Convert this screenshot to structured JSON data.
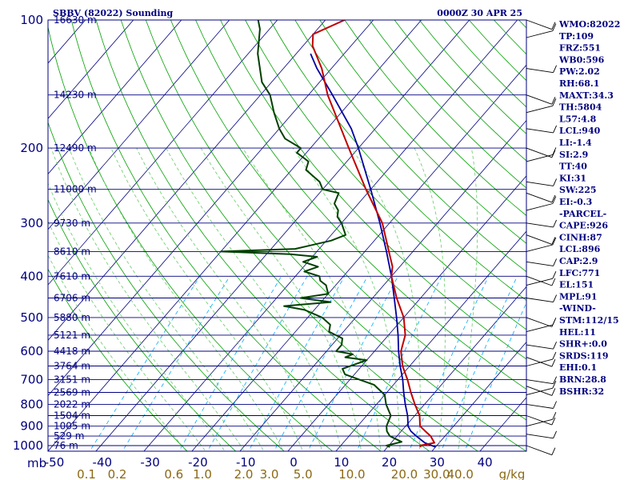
{
  "chart_data": {
    "type": "skew-t",
    "title": "SBBV (82022) Sounding",
    "datetime": "0000Z 30 APR 25",
    "pressure_axis_label": "mb",
    "pressure_ticks": [
      100,
      200,
      300,
      400,
      500,
      600,
      700,
      800,
      900,
      1000
    ],
    "temperature_ticks": [
      "-50",
      "-40",
      "-30",
      "-20",
      "-10",
      "0",
      "10",
      "20",
      "30",
      "40"
    ],
    "mixing_ratio_labels": [
      "0.1",
      "0.2",
      "0.6",
      "1.0",
      "2.0",
      "3.0",
      "5.0",
      "10.0",
      "20.0",
      "30.0",
      "40.0"
    ],
    "mixing_ratio_unit": "g/kg",
    "height_labels": [
      {
        "p": 100,
        "text": "16630 m"
      },
      {
        "p": 150,
        "text": "14230 m"
      },
      {
        "p": 200,
        "text": "12490 m"
      },
      {
        "p": 250,
        "text": "11000 m"
      },
      {
        "p": 300,
        "text": "9730 m"
      },
      {
        "p": 350,
        "text": "8610 m"
      },
      {
        "p": 400,
        "text": "7610 m"
      },
      {
        "p": 450,
        "text": "6706 m"
      },
      {
        "p": 500,
        "text": "5880 m"
      },
      {
        "p": 550,
        "text": "5121 m"
      },
      {
        "p": 600,
        "text": "4418 m"
      },
      {
        "p": 650,
        "text": "3764 m"
      },
      {
        "p": 700,
        "text": "3151 m"
      },
      {
        "p": 750,
        "text": "2569 m"
      },
      {
        "p": 800,
        "text": "2022 m"
      },
      {
        "p": 850,
        "text": "1504 m"
      },
      {
        "p": 900,
        "text": "1005 m"
      },
      {
        "p": 950,
        "text": "529 m"
      },
      {
        "p": 1000,
        "text": "76 m"
      }
    ],
    "temperature_profile": [
      [
        1008,
        27
      ],
      [
        1000,
        26.5
      ],
      [
        985,
        29
      ],
      [
        950,
        27
      ],
      [
        925,
        25
      ],
      [
        900,
        23
      ],
      [
        850,
        21
      ],
      [
        800,
        18
      ],
      [
        750,
        15
      ],
      [
        700,
        12
      ],
      [
        650,
        8.5
      ],
      [
        600,
        5.5
      ],
      [
        550,
        3.5
      ],
      [
        500,
        0
      ],
      [
        450,
        -5
      ],
      [
        400,
        -10
      ],
      [
        380,
        -11.5
      ],
      [
        350,
        -15
      ],
      [
        300,
        -21.5
      ],
      [
        250,
        -31
      ],
      [
        200,
        -42
      ],
      [
        150,
        -56
      ],
      [
        130,
        -62
      ],
      [
        115,
        -68
      ],
      [
        108,
        -70
      ],
      [
        100,
        -66
      ]
    ],
    "dewpoint_profile": [
      [
        1008,
        20.5
      ],
      [
        1000,
        19.5
      ],
      [
        980,
        22
      ],
      [
        950,
        18.5
      ],
      [
        925,
        17
      ],
      [
        900,
        16
      ],
      [
        850,
        15
      ],
      [
        800,
        12
      ],
      [
        760,
        10
      ],
      [
        720,
        6
      ],
      [
        700,
        2
      ],
      [
        680,
        -2
      ],
      [
        660,
        -3.5
      ],
      [
        630,
        0
      ],
      [
        620,
        -5
      ],
      [
        610,
        -4
      ],
      [
        600,
        -8
      ],
      [
        580,
        -8
      ],
      [
        560,
        -9
      ],
      [
        540,
        -13
      ],
      [
        520,
        -14
      ],
      [
        500,
        -17
      ],
      [
        480,
        -22
      ],
      [
        470,
        -27
      ],
      [
        460,
        -18
      ],
      [
        450,
        -25
      ],
      [
        440,
        -20
      ],
      [
        430,
        -21
      ],
      [
        420,
        -22
      ],
      [
        410,
        -24
      ],
      [
        400,
        -25
      ],
      [
        390,
        -29
      ],
      [
        380,
        -27
      ],
      [
        370,
        -31
      ],
      [
        360,
        -29
      ],
      [
        355,
        -35
      ],
      [
        350,
        -50
      ],
      [
        345,
        -35
      ],
      [
        340,
        -33
      ],
      [
        330,
        -29
      ],
      [
        320,
        -27
      ],
      [
        300,
        -30
      ],
      [
        290,
        -32
      ],
      [
        280,
        -33
      ],
      [
        270,
        -35
      ],
      [
        255,
        -36
      ],
      [
        250,
        -40
      ],
      [
        240,
        -42
      ],
      [
        225,
        -47
      ],
      [
        215,
        -48
      ],
      [
        205,
        -52
      ],
      [
        200,
        -52
      ],
      [
        190,
        -57
      ],
      [
        180,
        -60
      ],
      [
        165,
        -64
      ],
      [
        150,
        -68
      ],
      [
        140,
        -72
      ],
      [
        120,
        -78
      ],
      [
        105,
        -82
      ],
      [
        100,
        -84
      ]
    ],
    "parcel_profile": [
      [
        1008,
        30
      ],
      [
        985,
        27
      ],
      [
        950,
        24
      ],
      [
        925,
        22
      ],
      [
        900,
        20.5
      ],
      [
        850,
        18.5
      ],
      [
        800,
        16
      ],
      [
        750,
        13.5
      ],
      [
        700,
        11
      ],
      [
        650,
        8
      ],
      [
        600,
        5
      ],
      [
        550,
        2
      ],
      [
        500,
        -1.5
      ],
      [
        450,
        -5.5
      ],
      [
        400,
        -10
      ],
      [
        350,
        -15.5
      ],
      [
        300,
        -22
      ],
      [
        250,
        -30
      ],
      [
        200,
        -40
      ],
      [
        180,
        -45
      ],
      [
        150,
        -55
      ],
      [
        130,
        -63
      ],
      [
        120,
        -67
      ]
    ],
    "wind_barbs": [
      [
        100,
        "",
        0
      ],
      [
        110,
        "",
        0
      ],
      [
        130,
        "",
        0
      ],
      [
        150,
        "",
        0
      ],
      [
        165,
        "",
        0
      ],
      [
        180,
        "",
        0
      ],
      [
        200,
        "",
        0
      ],
      [
        215,
        "",
        0
      ],
      [
        240,
        "",
        0
      ],
      [
        255,
        "",
        0
      ],
      [
        280,
        "",
        0
      ],
      [
        300,
        "",
        0
      ],
      [
        320,
        "",
        0
      ],
      [
        350,
        "",
        0
      ],
      [
        370,
        "",
        0
      ],
      [
        400,
        "",
        0
      ],
      [
        420,
        "",
        0
      ],
      [
        450,
        "",
        0
      ],
      [
        500,
        "",
        0
      ],
      [
        540,
        "",
        0
      ],
      [
        580,
        "",
        0
      ],
      [
        620,
        "",
        0
      ],
      [
        650,
        "",
        0
      ],
      [
        700,
        "",
        0
      ],
      [
        725,
        "",
        0
      ],
      [
        760,
        "",
        0
      ],
      [
        800,
        "",
        0
      ],
      [
        850,
        "",
        0
      ],
      [
        900,
        "",
        0
      ],
      [
        940,
        "",
        0
      ],
      [
        1000,
        "",
        0
      ]
    ],
    "indices": [
      "WMO:82022",
      "TP:109",
      "FRZ:551",
      "WB0:596",
      "PW:2.02",
      "RH:68.1",
      "MAXT:34.3",
      "TH:5804",
      "L57:4.8",
      "LCL:940",
      "LI:-1.4",
      "SI:2.9",
      "TT:40",
      "KI:31",
      "SW:225",
      "EI:-0.3",
      "-PARCEL-",
      "CAPE:926",
      "CINH:87",
      "LCL:896",
      "CAP:2.9",
      "LFC:771",
      "EL:151",
      "MPL:91",
      "-WIND-",
      "STM:112/15",
      "HEL:11",
      "SHR+:0.0",
      "SRDS:119",
      "EHI:0.1",
      "BRN:28.8",
      "BSHR:32"
    ],
    "colors": {
      "frame": "#000080",
      "isobar": "#000080",
      "isotherm": "#000080",
      "dry_adiabat": "#00a000",
      "moist_adiabat": "#66cc66",
      "mixing_ratio": "#00aaff",
      "temperature": "#c00000",
      "dewpoint": "#004000",
      "parcel": "#0000a0",
      "mixing_label": "#8b6914",
      "text": "#000080"
    }
  }
}
